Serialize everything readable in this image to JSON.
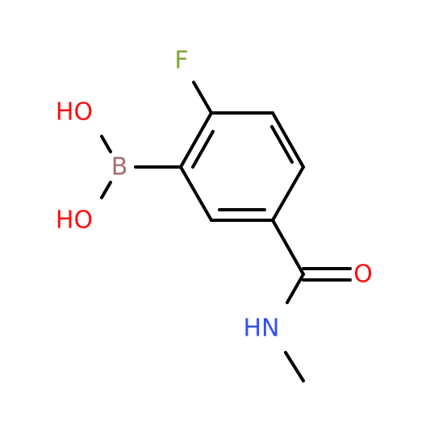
{
  "atoms": [
    {
      "label": "F"
    },
    {
      "label": "HO"
    },
    {
      "label": "B"
    },
    {
      "label": "HO"
    },
    {
      "label": "O"
    },
    {
      "label": "HN"
    }
  ]
}
